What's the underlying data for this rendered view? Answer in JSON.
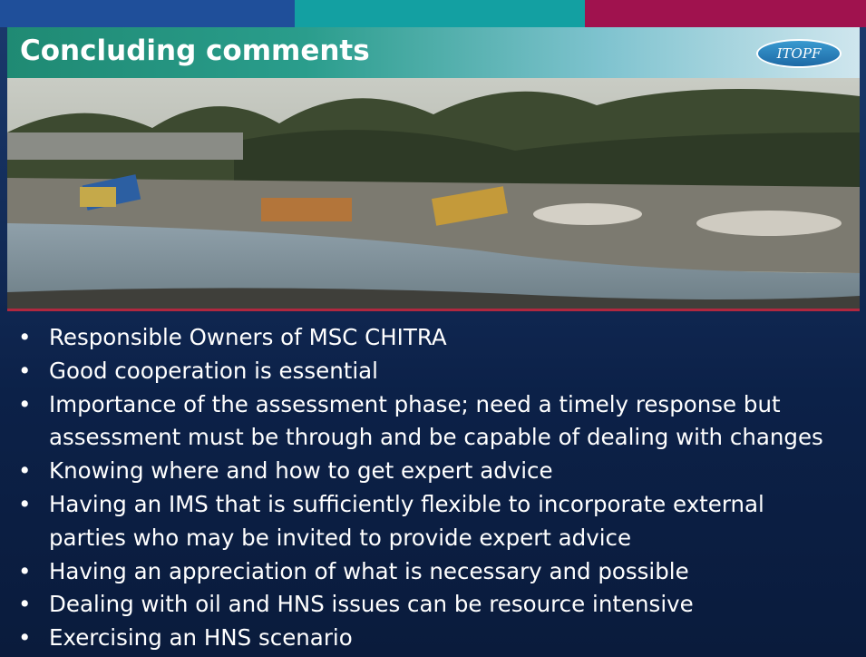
{
  "header": {
    "title": "Concluding comments",
    "logo": "ITOPF"
  },
  "bullets": [
    {
      "lines": [
        "Responsible Owners of MSC CHITRA"
      ]
    },
    {
      "lines": [
        "Good cooperation is essential"
      ]
    },
    {
      "lines": [
        "Importance of the assessment phase; need a timely response but",
        "assessment must be through and be capable of dealing with changes"
      ]
    },
    {
      "lines": [
        "Knowing where and how to get expert advice"
      ]
    },
    {
      "lines": [
        "Having an IMS that is sufficiently flexible to incorporate external",
        "parties who may be invited to provide expert advice"
      ]
    },
    {
      "lines": [
        "Having an appreciation of what is necessary and possible"
      ]
    },
    {
      "lines": [
        "Dealing with oil and HNS issues can be resource intensive"
      ]
    },
    {
      "lines": [
        "Exercising an HNS scenario"
      ]
    }
  ]
}
